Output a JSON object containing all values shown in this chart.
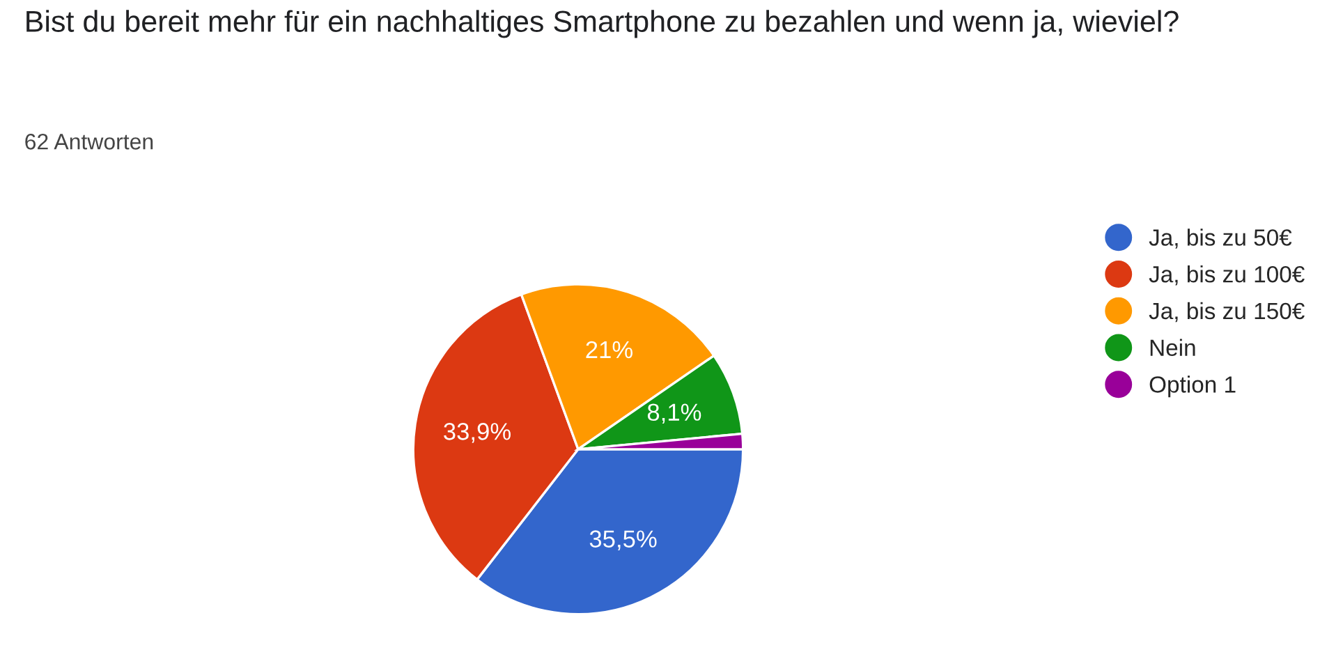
{
  "chart_data": {
    "type": "pie",
    "title": "Bist du bereit mehr für ein nachhaltiges Smartphone zu bezahlen und wenn ja, wieviel?",
    "subtitle": "62 Antworten",
    "categories": [
      "Ja, bis zu 50€",
      "Ja, bis zu 100€",
      "Ja, bis zu 150€",
      "Nein",
      "Option 1"
    ],
    "values": [
      35.5,
      33.9,
      21,
      8.1,
      1.5
    ],
    "value_labels": [
      "35,5%",
      "33,9%",
      "21%",
      "8,1%",
      null
    ],
    "colors": [
      "#3366cc",
      "#dc3912",
      "#ff9900",
      "#109618",
      "#990099"
    ],
    "legend": "right"
  }
}
